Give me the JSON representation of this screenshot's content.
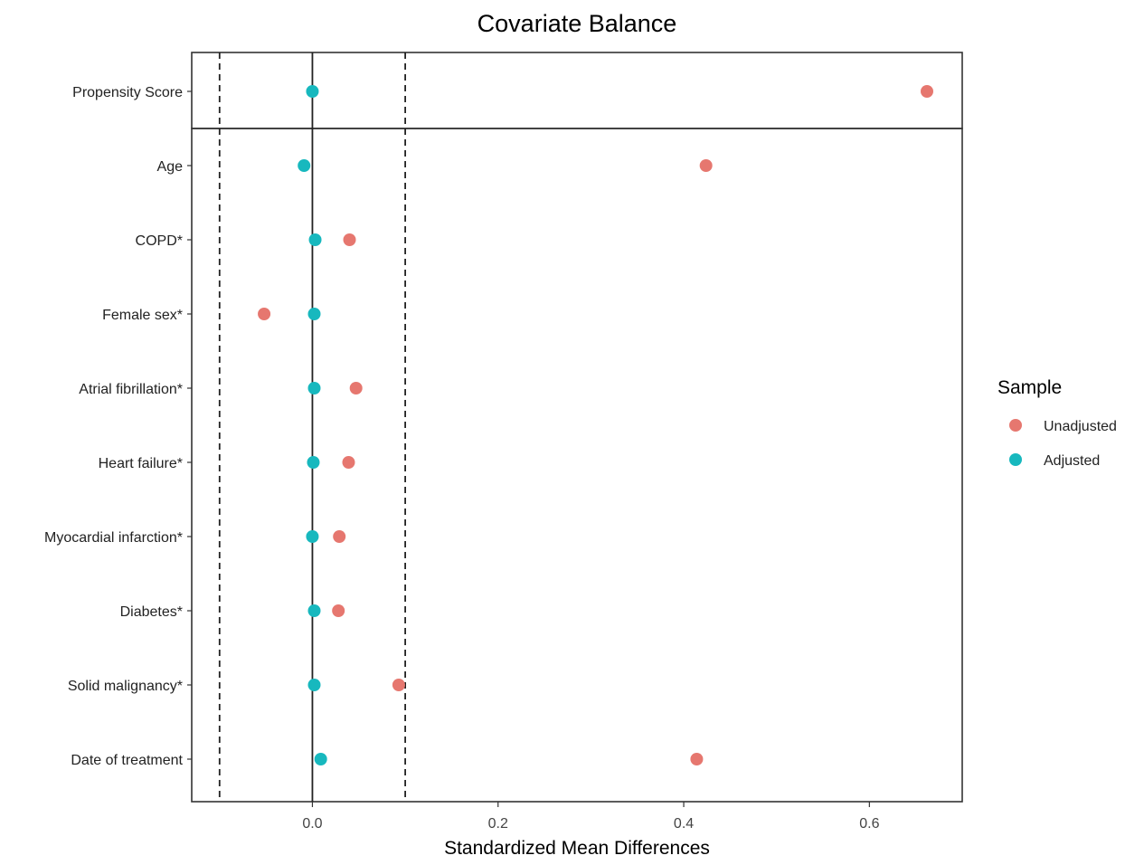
{
  "chart_data": {
    "type": "scatter",
    "title": "Covariate Balance",
    "xlabel": "Standardized Mean Differences",
    "ylabel": "",
    "xlim": [
      -0.13,
      0.7
    ],
    "xticks": [
      0.0,
      0.2,
      0.4,
      0.6
    ],
    "xtick_labels": [
      "0.0",
      "0.2",
      "0.4",
      "0.6"
    ],
    "reference_lines": {
      "solid": [
        0.0
      ],
      "dashed": [
        -0.1,
        0.1
      ]
    },
    "panels": [
      {
        "categories": [
          "Propensity Score"
        ]
      },
      {
        "categories": [
          "Age",
          "COPD*",
          "Female sex*",
          "Atrial fibrillation*",
          "Heart failure*",
          "Myocardial infarction*",
          "Diabetes*",
          "Solid malignancy*",
          "Date of treatment"
        ]
      }
    ],
    "categories": [
      "Propensity Score",
      "Age",
      "COPD*",
      "Female sex*",
      "Atrial fibrillation*",
      "Heart failure*",
      "Myocardial infarction*",
      "Diabetes*",
      "Solid malignancy*",
      "Date of treatment"
    ],
    "series": [
      {
        "name": "Unadjusted",
        "color": "#e6776f",
        "values": [
          0.662,
          0.424,
          0.04,
          -0.052,
          0.047,
          0.039,
          0.029,
          0.028,
          0.093,
          0.414
        ]
      },
      {
        "name": "Adjusted",
        "color": "#17b8be",
        "values": [
          0.0,
          -0.009,
          0.003,
          0.002,
          0.002,
          0.001,
          0.0,
          0.002,
          0.002,
          0.009
        ]
      }
    ],
    "legend": {
      "title": "Sample",
      "position": "right"
    },
    "grid": false
  }
}
